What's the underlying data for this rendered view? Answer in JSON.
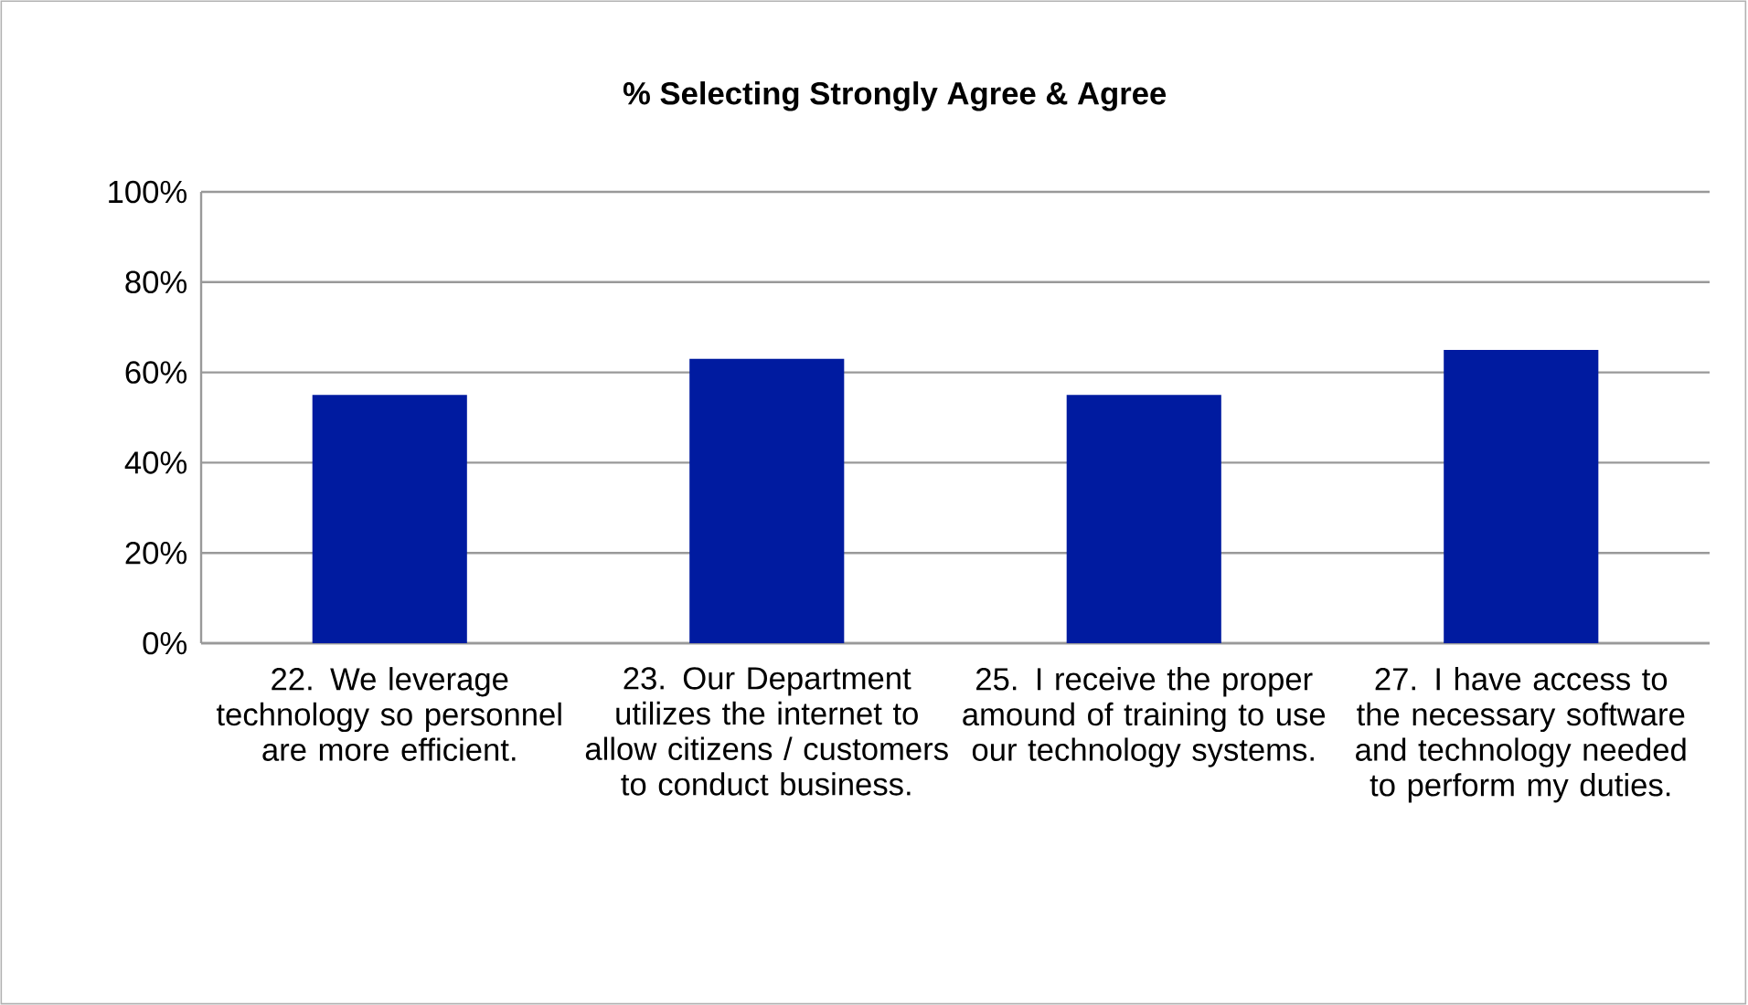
{
  "chart_data": {
    "type": "bar",
    "title": "% Selecting Strongly Agree & Agree",
    "categories": [
      "22.  We leverage technology so personnel are more efficient.",
      "23.  Our Department utilizes the internet to allow citizens / customers to conduct business.",
      "25.  I receive the proper amound of training to use our technology systems.",
      "27.  I have access to the necessary software and technology needed to perform my duties."
    ],
    "values": [
      55,
      63,
      55,
      65
    ],
    "color": "#001ba0",
    "ylim": [
      0,
      100
    ],
    "yticks": [
      {
        "value": 0,
        "label": "0%"
      },
      {
        "value": 20,
        "label": "20%"
      },
      {
        "value": 40,
        "label": "40%"
      },
      {
        "value": 60,
        "label": "60%"
      },
      {
        "value": 80,
        "label": "80%"
      },
      {
        "value": 100,
        "label": "100%"
      }
    ],
    "grid": "y"
  }
}
